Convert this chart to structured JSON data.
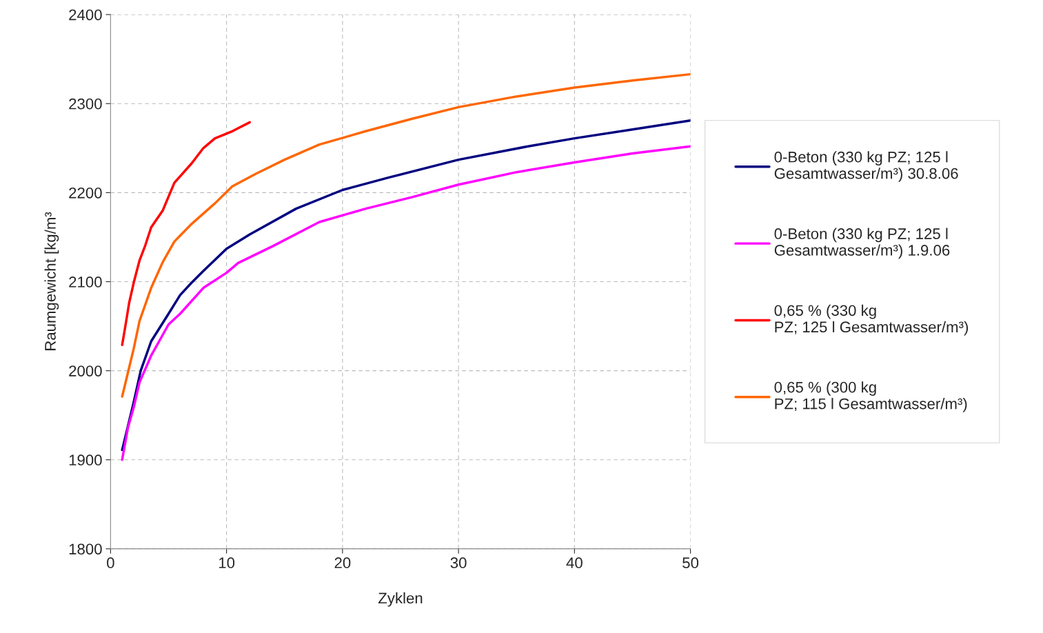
{
  "chart_data": {
    "type": "line",
    "xlabel": "Zyklen",
    "ylabel": "Raumgewicht [kg/m³",
    "xlim": [
      0,
      50
    ],
    "xticks": [
      0,
      10,
      20,
      30,
      40,
      50
    ],
    "ylim": [
      1800,
      2400
    ],
    "yticks": [
      1800,
      1900,
      2000,
      2100,
      2200,
      2300,
      2400
    ],
    "grid": true,
    "legend": "right",
    "series": [
      {
        "name": "0-Beton (330 kg PZ; 125 l\nGesamtwasser/m³) 30.8.06",
        "color": "#000080",
        "x": [
          1,
          2,
          2.6,
          3.5,
          5,
          6,
          7,
          8,
          10,
          12,
          16,
          20,
          24,
          30,
          36,
          40,
          45,
          50
        ],
        "values": [
          1911,
          1965,
          2000,
          2033,
          2064,
          2085,
          2099,
          2112,
          2137,
          2153,
          2182,
          2203,
          2217,
          2237,
          2252,
          2261,
          2271,
          2281
        ]
      },
      {
        "name": "0-Beton (330 kg PZ; 125 l\nGesamtwasser/m³) 1.9.06",
        "color": "#ff00ff",
        "x": [
          1,
          1.5,
          2,
          2.5,
          3.5,
          5,
          6,
          8,
          10,
          11,
          14,
          18,
          22,
          26,
          30,
          35,
          40,
          45,
          50
        ],
        "values": [
          1900,
          1936,
          1959,
          1987,
          2017,
          2052,
          2064,
          2093,
          2110,
          2121,
          2140,
          2167,
          2182,
          2195,
          2209,
          2223,
          2234,
          2244,
          2252
        ]
      },
      {
        "name": "0,65 % (330 kg\nPZ; 125 l Gesamtwasser/m³)",
        "color": "#ff0000",
        "x": [
          1,
          1.3,
          1.6,
          2,
          2.5,
          3,
          3.5,
          4.5,
          5.5,
          7,
          8,
          9,
          10.5,
          12
        ],
        "values": [
          2029,
          2052,
          2076,
          2099,
          2124,
          2141,
          2161,
          2180,
          2211,
          2233,
          2250,
          2261,
          2269,
          2279
        ]
      },
      {
        "name": "0,65 % (300 kg\nPZ; 115 l Gesamtwasser/m³)",
        "color": "#ff6600",
        "x": [
          1,
          1.5,
          2,
          2.5,
          3.5,
          4.5,
          5.5,
          7,
          9,
          10.5,
          12.5,
          15,
          18,
          22,
          26,
          30,
          35,
          40,
          45,
          50
        ],
        "values": [
          1971,
          1998,
          2025,
          2056,
          2093,
          2122,
          2145,
          2165,
          2188,
          2207,
          2221,
          2237,
          2254,
          2269,
          2283,
          2296,
          2308,
          2318,
          2326,
          2333
        ]
      }
    ]
  }
}
